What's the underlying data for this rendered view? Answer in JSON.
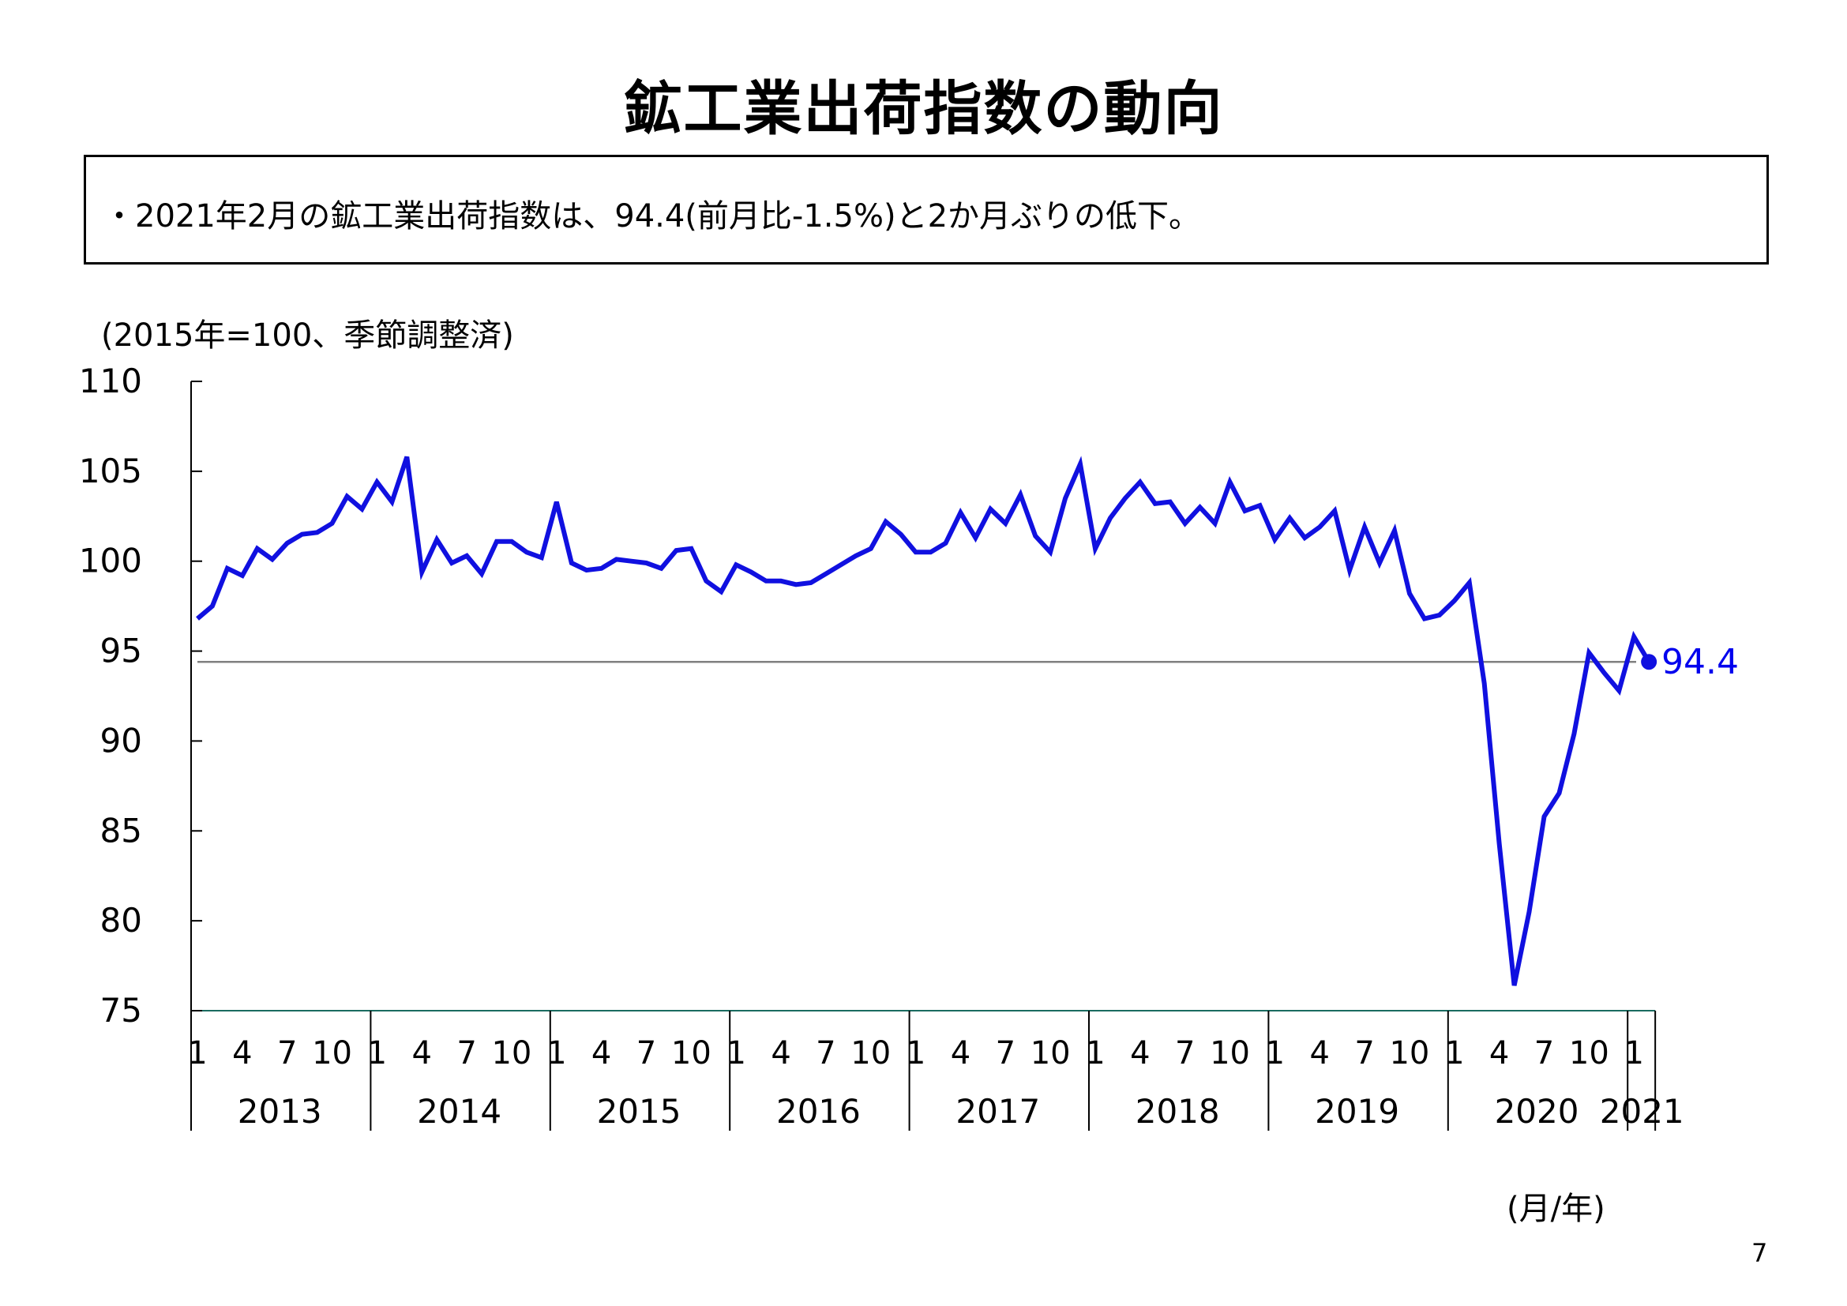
{
  "title": "鉱工業出荷指数の動向",
  "summary": "・2021年2月の鉱工業出荷指数は、94.4(前月比-1.5%)と2か月ぶりの低下。",
  "page_number": "7",
  "chart_data": {
    "type": "line",
    "title": "鉱工業出荷指数の動向",
    "ylabel": "(2015年=100、季節調整済)",
    "xlabel": "(月/年)",
    "ylim": [
      75,
      110
    ],
    "yticks": [
      75,
      80,
      85,
      90,
      95,
      100,
      105,
      110
    ],
    "xlim": [
      1,
      98
    ],
    "month_ticks": [
      "1",
      "4",
      "7",
      "10"
    ],
    "years": [
      "2013",
      "2014",
      "2015",
      "2016",
      "2017",
      "2018",
      "2019",
      "2020",
      "2021"
    ],
    "reference_line": 94.4,
    "last_value_label": "94.4",
    "colors": {
      "series": "#1010e0",
      "reference": "#808080",
      "axis": "#000000"
    },
    "series": [
      {
        "values": [
          96.8,
          97.5,
          99.6,
          99.2,
          100.7,
          100.1,
          101.0,
          101.5,
          101.6,
          102.1,
          103.6,
          102.9,
          104.4,
          103.3,
          105.8,
          99.4,
          101.2,
          99.9,
          100.3,
          99.3,
          101.1,
          101.1,
          100.5,
          100.2,
          103.3,
          99.9,
          99.5,
          99.6,
          100.1,
          100.0,
          99.9,
          99.6,
          100.6,
          100.7,
          98.9,
          98.3,
          99.8,
          99.4,
          98.9,
          98.9,
          98.7,
          98.8,
          99.3,
          99.8,
          100.3,
          100.7,
          102.2,
          101.5,
          100.5,
          100.5,
          101.0,
          102.7,
          101.3,
          102.9,
          102.1,
          103.7,
          101.4,
          100.5,
          103.5,
          105.4,
          100.7,
          102.4,
          103.5,
          104.4,
          103.2,
          103.3,
          102.1,
          103.0,
          102.1,
          104.4,
          102.8,
          103.1,
          101.2,
          102.4,
          101.3,
          101.9,
          102.8,
          99.5,
          101.9,
          99.9,
          101.7,
          98.2,
          96.8,
          97.0,
          97.8,
          98.8,
          93.2,
          84.3,
          76.4,
          80.5,
          85.8,
          87.1,
          90.4,
          94.9,
          93.8,
          92.8,
          95.8,
          94.4
        ]
      }
    ]
  }
}
